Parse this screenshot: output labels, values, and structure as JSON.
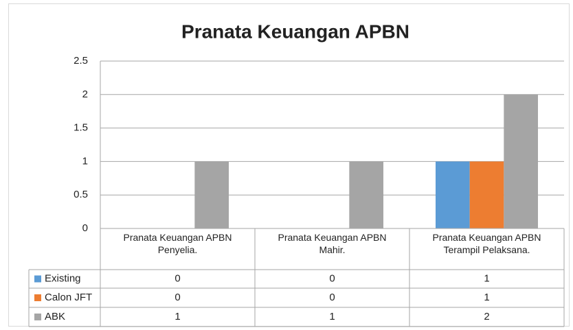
{
  "chart_data": {
    "type": "bar",
    "title": "Pranata Keuangan APBN",
    "categories": [
      "Pranata Keuangan APBN Penyelia.",
      "Pranata Keuangan APBN Mahir.",
      "Pranata Keuangan APBN Terampil Pelaksana."
    ],
    "series": [
      {
        "name": "Existing",
        "color": "#5b9bd5",
        "values": [
          0,
          0,
          1
        ]
      },
      {
        "name": "Calon JFT",
        "color": "#ed7d31",
        "values": [
          0,
          0,
          1
        ]
      },
      {
        "name": "ABK",
        "color": "#a5a5a5",
        "values": [
          1,
          1,
          2
        ]
      }
    ],
    "ylim": [
      0,
      2.5
    ],
    "yticks": [
      0,
      0.5,
      1,
      1.5,
      2,
      2.5
    ],
    "grid": true,
    "data_table": true
  }
}
